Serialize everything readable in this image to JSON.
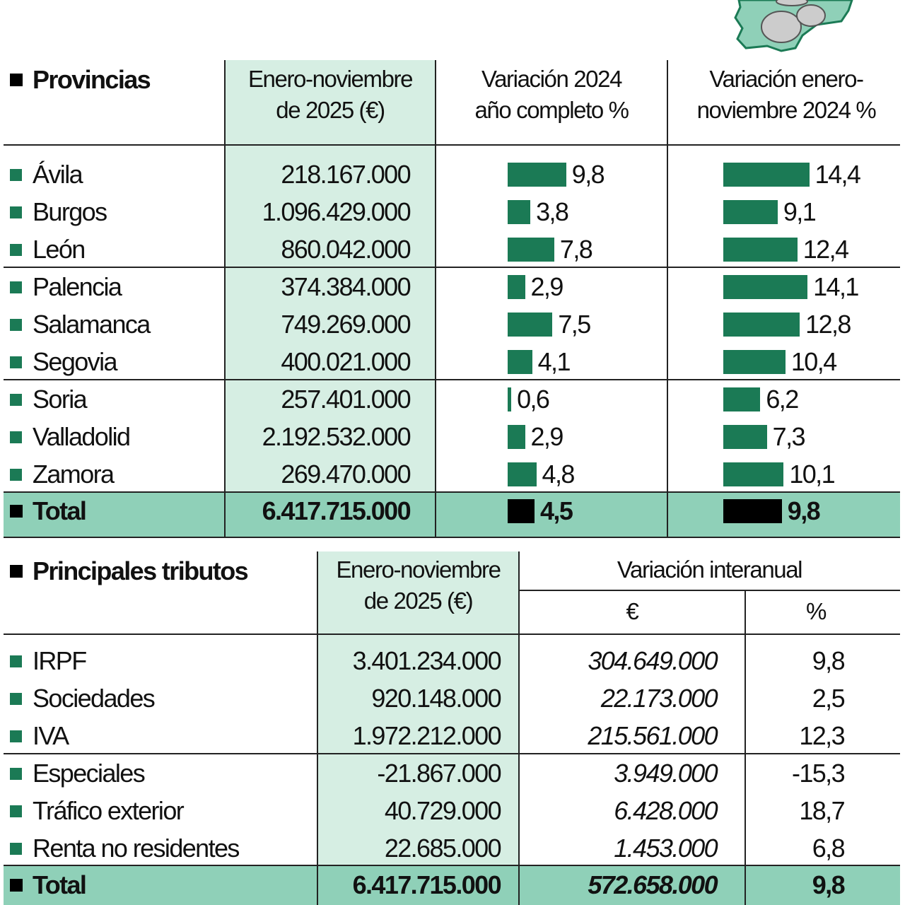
{
  "colors": {
    "bar": "#1b7a55",
    "total_row": "#8fd0b8",
    "highlight_column": "#d6eee3",
    "total_bar": "#000000"
  },
  "logo": {
    "icon": "castilla-leon-map-with-euro-coins-icon"
  },
  "chart_data": [
    {
      "type": "table",
      "headers": [
        "Provincias",
        "Enero-noviembre de 2025 (€)",
        "Variación 2024 año completo %",
        "Variación enero-noviembre 2024 %"
      ],
      "header_lines": {
        "amount": [
          "Enero-noviembre",
          "de 2025 (€)"
        ],
        "var_year": [
          "Variación 2024",
          "año completo %"
        ],
        "var_jan_nov": [
          "Variación enero-",
          "noviembre 2024 %"
        ]
      },
      "rows": [
        {
          "name": "Ávila",
          "amount": "218.167.000",
          "var_year": 9.8,
          "var_year_label": "9,8",
          "var_jan_nov": 14.4,
          "var_jan_nov_label": "14,4"
        },
        {
          "name": "Burgos",
          "amount": "1.096.429.000",
          "var_year": 3.8,
          "var_year_label": "3,8",
          "var_jan_nov": 9.1,
          "var_jan_nov_label": "9,1"
        },
        {
          "name": "León",
          "amount": "860.042.000",
          "var_year": 7.8,
          "var_year_label": "7,8",
          "var_jan_nov": 12.4,
          "var_jan_nov_label": "12,4"
        },
        {
          "name": "Palencia",
          "amount": "374.384.000",
          "var_year": 2.9,
          "var_year_label": "2,9",
          "var_jan_nov": 14.1,
          "var_jan_nov_label": "14,1"
        },
        {
          "name": "Salamanca",
          "amount": "749.269.000",
          "var_year": 7.5,
          "var_year_label": "7,5",
          "var_jan_nov": 12.8,
          "var_jan_nov_label": "12,8"
        },
        {
          "name": "Segovia",
          "amount": "400.021.000",
          "var_year": 4.1,
          "var_year_label": "4,1",
          "var_jan_nov": 10.4,
          "var_jan_nov_label": "10,4"
        },
        {
          "name": "Soria",
          "amount": "257.401.000",
          "var_year": 0.6,
          "var_year_label": "0,6",
          "var_jan_nov": 6.2,
          "var_jan_nov_label": "6,2"
        },
        {
          "name": "Valladolid",
          "amount": "2.192.532.000",
          "var_year": 2.9,
          "var_year_label": "2,9",
          "var_jan_nov": 7.3,
          "var_jan_nov_label": "7,3"
        },
        {
          "name": "Zamora",
          "amount": "269.470.000",
          "var_year": 4.8,
          "var_year_label": "4,8",
          "var_jan_nov": 10.1,
          "var_jan_nov_label": "10,1"
        }
      ],
      "total": {
        "name": "Total",
        "amount": "6.417.715.000",
        "var_year": 4.5,
        "var_year_label": "4,5",
        "var_jan_nov": 9.8,
        "var_jan_nov_label": "9,8"
      }
    },
    {
      "type": "table",
      "headers": [
        "Principales tributos",
        "Enero-noviembre de 2025 (€)",
        "Variación interanual",
        "€",
        "%"
      ],
      "header_lines": {
        "amount": [
          "Enero-noviembre",
          "de 2025 (€)"
        ]
      },
      "rows": [
        {
          "name": "IRPF",
          "amount": "3.401.234.000",
          "var_eur": "304.649.000",
          "var_pct": "9,8"
        },
        {
          "name": "Sociedades",
          "amount": "920.148.000",
          "var_eur": "22.173.000",
          "var_pct": "2,5"
        },
        {
          "name": "IVA",
          "amount": "1.972.212.000",
          "var_eur": "215.561.000",
          "var_pct": "12,3"
        },
        {
          "name": "Especiales",
          "amount": "-21.867.000",
          "var_eur": "3.949.000",
          "var_pct": "-15,3"
        },
        {
          "name": "Tráfico exterior",
          "amount": "40.729.000",
          "var_eur": "6.428.000",
          "var_pct": "18,7"
        },
        {
          "name": "Renta no residentes",
          "amount": "22.685.000",
          "var_eur": "1.453.000",
          "var_pct": "6,8"
        }
      ],
      "total": {
        "name": "Total",
        "amount": "6.417.715.000",
        "var_eur": "572.658.000",
        "var_pct": "9,8"
      }
    }
  ]
}
